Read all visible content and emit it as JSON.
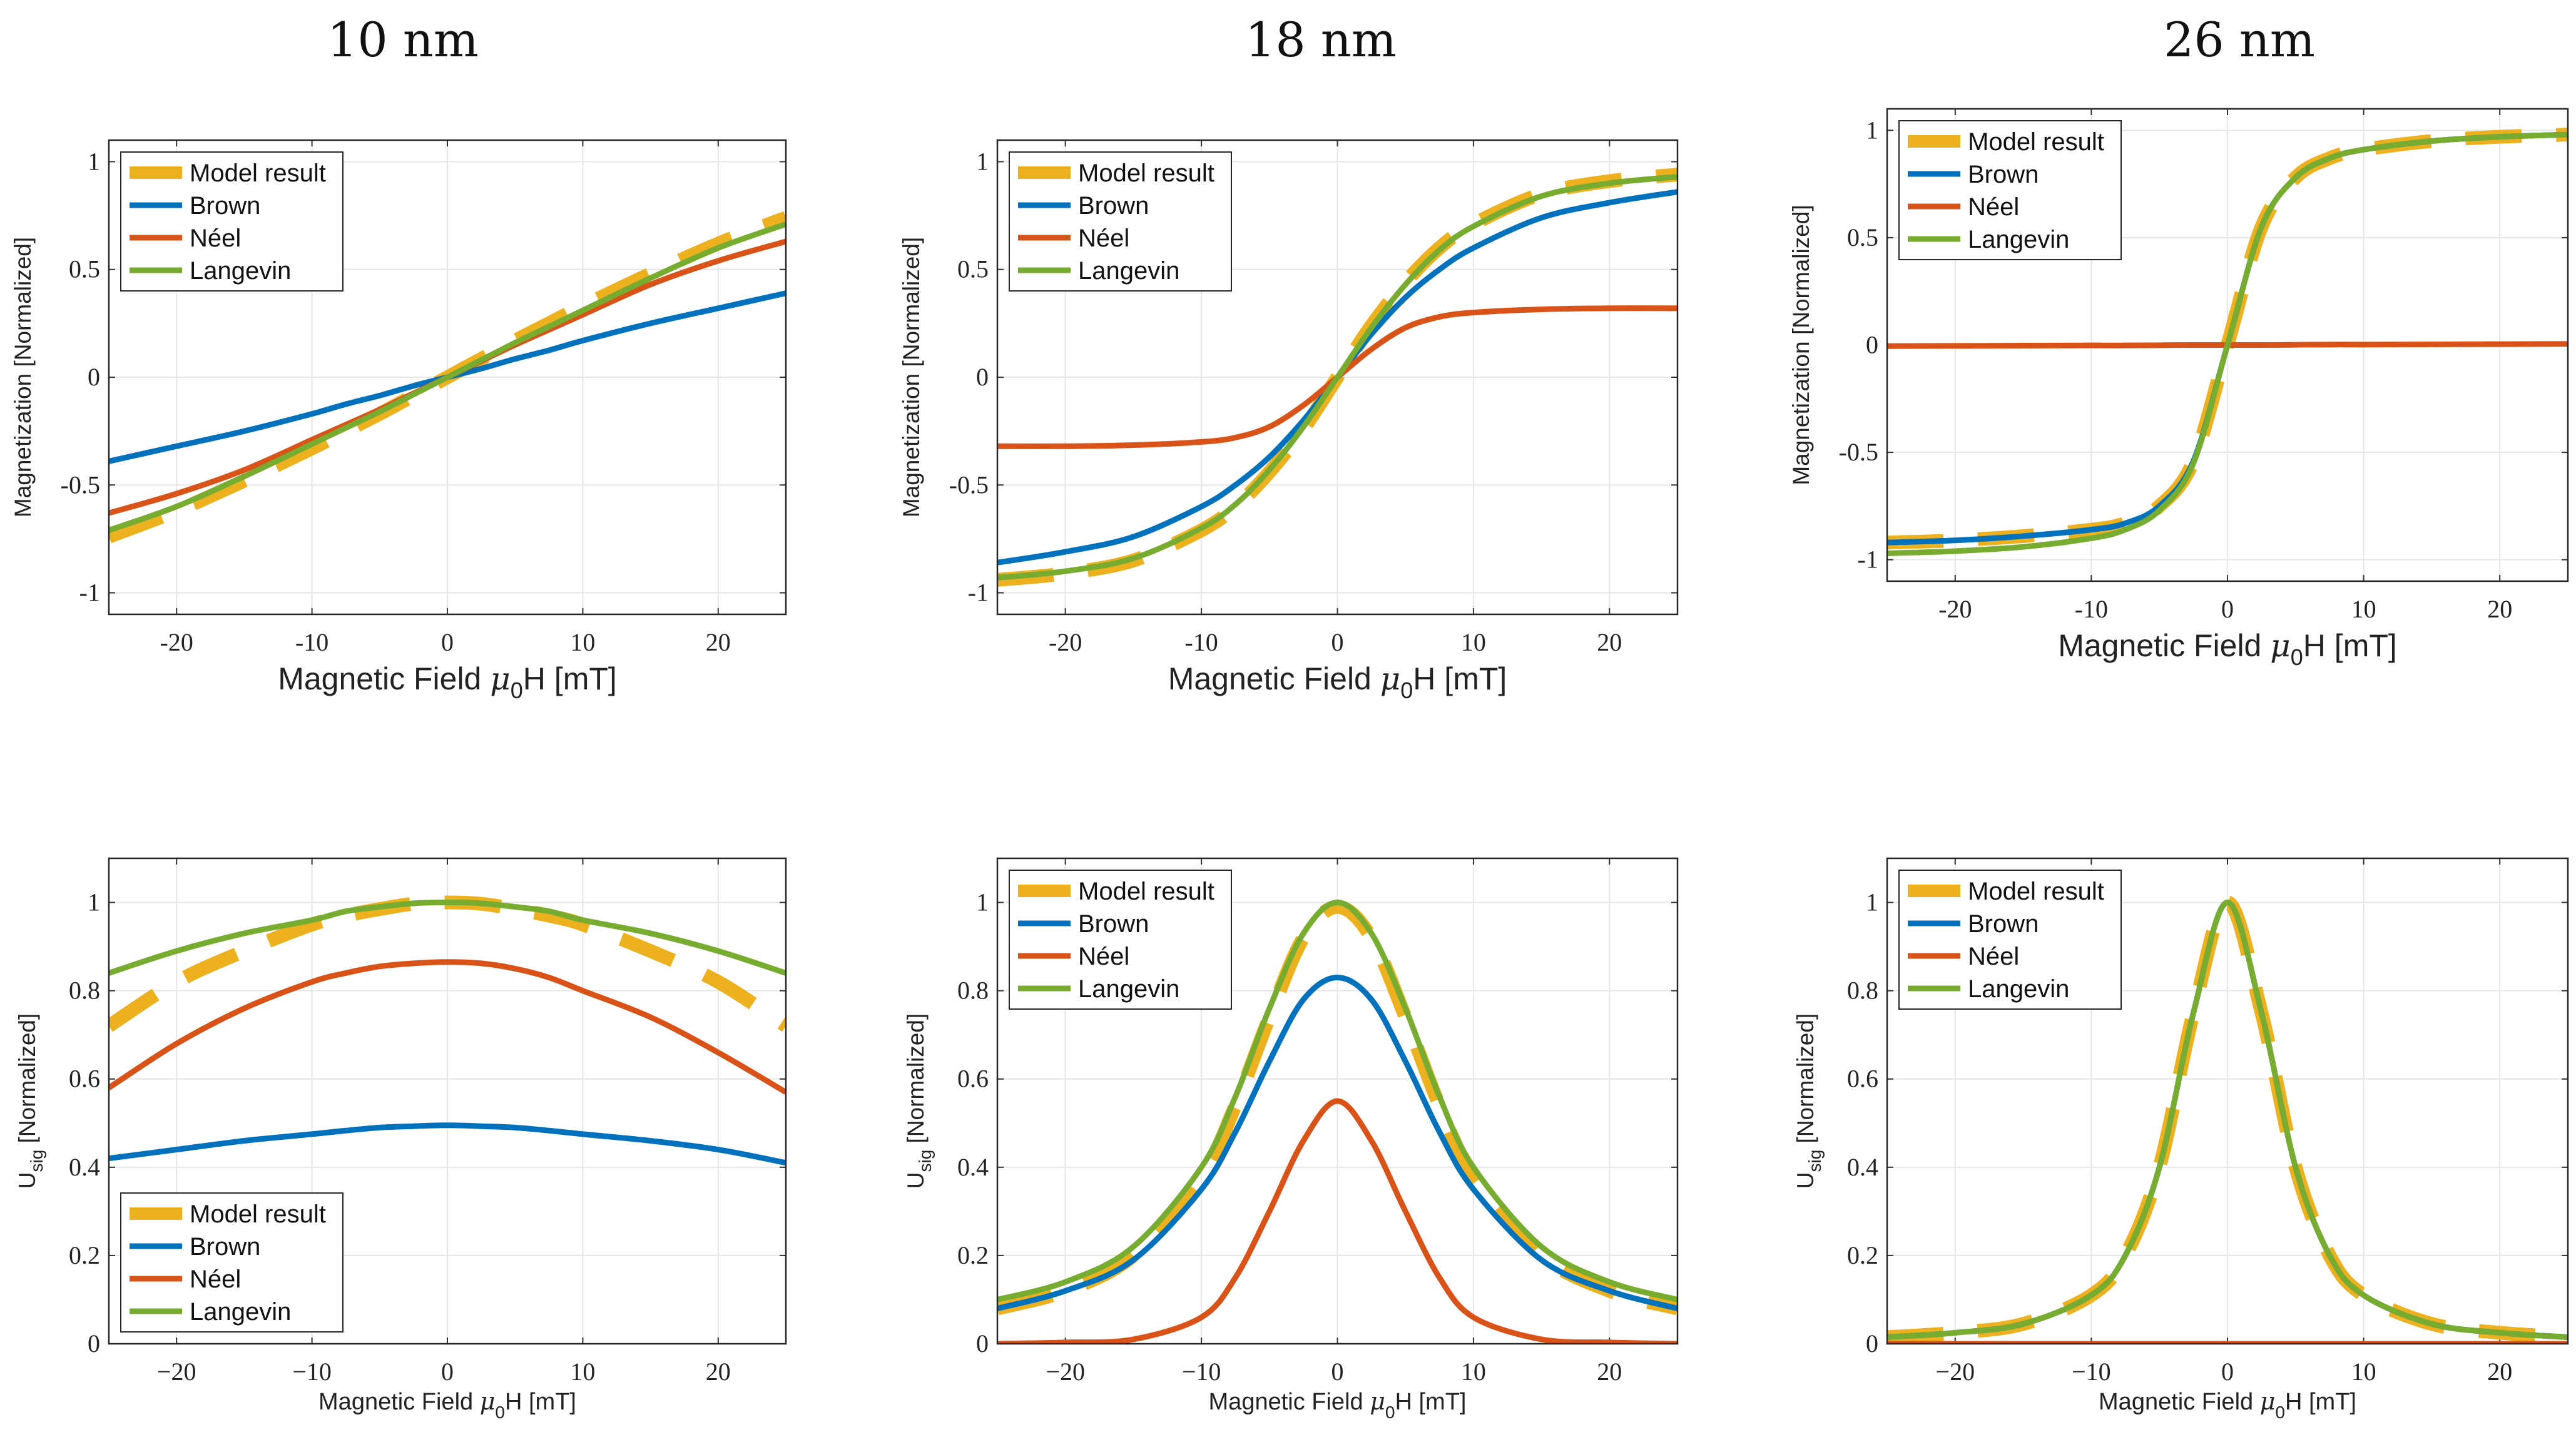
{
  "colors": {
    "model": "#EDB120",
    "brown": "#0072BD",
    "neel": "#D95319",
    "langevin": "#77AC30"
  },
  "chart_data": [
    {
      "type": "line",
      "title": "10 nm",
      "xlabel": "Magnetic Field μ0H [mT]",
      "ylabel": "Magnetization [Normalized]",
      "xlim": [
        -25,
        25
      ],
      "ylim": [
        -1.1,
        1.1
      ],
      "xticks": [
        "-20",
        "-10",
        "0",
        "10",
        "20"
      ],
      "xtick_values": [
        -20,
        -10,
        0,
        10,
        20
      ],
      "yticks": [
        "-1",
        "-0.5",
        "0",
        "0.5",
        "1"
      ],
      "ytick_values": [
        -1,
        -0.5,
        0,
        0.5,
        1
      ],
      "grid": true,
      "legend": "top-left",
      "x": [
        -25,
        -20,
        -15,
        -10,
        -7.5,
        -5,
        -2.5,
        0,
        2.5,
        5,
        7.5,
        10,
        15,
        20,
        25
      ],
      "series": [
        {
          "name": "Model result",
          "values": [
            -0.74,
            -0.62,
            -0.48,
            -0.33,
            -0.25,
            -0.17,
            -0.085,
            0,
            0.085,
            0.17,
            0.25,
            0.33,
            0.48,
            0.62,
            0.74
          ]
        },
        {
          "name": "Brown",
          "values": [
            -0.39,
            -0.32,
            -0.25,
            -0.17,
            -0.125,
            -0.085,
            -0.04,
            0,
            0.04,
            0.085,
            0.125,
            0.17,
            0.25,
            0.32,
            0.39
          ]
        },
        {
          "name": "Néel",
          "values": [
            -0.63,
            -0.54,
            -0.43,
            -0.29,
            -0.22,
            -0.15,
            -0.075,
            0,
            0.075,
            0.15,
            0.22,
            0.29,
            0.43,
            0.54,
            0.63
          ]
        },
        {
          "name": "Langevin",
          "values": [
            -0.71,
            -0.6,
            -0.46,
            -0.31,
            -0.235,
            -0.16,
            -0.08,
            0,
            0.08,
            0.16,
            0.235,
            0.31,
            0.46,
            0.6,
            0.71
          ]
        }
      ]
    },
    {
      "type": "line",
      "title": "18 nm",
      "xlabel": "Magnetic Field μ0H [mT]",
      "ylabel": "Magnetization [Normalized]",
      "xlim": [
        -25,
        25
      ],
      "ylim": [
        -1.1,
        1.1
      ],
      "xticks": [
        "-20",
        "-10",
        "0",
        "10",
        "20"
      ],
      "xtick_values": [
        -20,
        -10,
        0,
        10,
        20
      ],
      "yticks": [
        "-1",
        "-0.5",
        "0",
        "0.5",
        "1"
      ],
      "ytick_values": [
        -1,
        -0.5,
        0,
        0.5,
        1
      ],
      "grid": true,
      "legend": "top-left",
      "x": [
        -25,
        -20,
        -15,
        -10,
        -7.5,
        -5,
        -2.5,
        0,
        2.5,
        5,
        7.5,
        10,
        15,
        20,
        25
      ],
      "series": [
        {
          "name": "Model result",
          "values": [
            -0.94,
            -0.91,
            -0.85,
            -0.71,
            -0.6,
            -0.44,
            -0.24,
            0,
            0.24,
            0.44,
            0.6,
            0.71,
            0.85,
            0.91,
            0.94
          ]
        },
        {
          "name": "Brown",
          "values": [
            -0.86,
            -0.81,
            -0.74,
            -0.6,
            -0.5,
            -0.37,
            -0.2,
            0,
            0.2,
            0.37,
            0.5,
            0.6,
            0.74,
            0.81,
            0.86
          ]
        },
        {
          "name": "Néel",
          "values": [
            -0.32,
            -0.32,
            -0.315,
            -0.3,
            -0.28,
            -0.23,
            -0.13,
            0,
            0.13,
            0.23,
            0.28,
            0.3,
            0.315,
            0.32,
            0.32
          ]
        },
        {
          "name": "Langevin",
          "values": [
            -0.93,
            -0.9,
            -0.84,
            -0.7,
            -0.59,
            -0.43,
            -0.23,
            0,
            0.23,
            0.43,
            0.59,
            0.7,
            0.84,
            0.9,
            0.93
          ]
        }
      ]
    },
    {
      "type": "line",
      "title": "26 nm",
      "xlabel": "Magnetic Field μ0H [mT]",
      "ylabel": "Magnetization [Normalized]",
      "xlim": [
        -25,
        25
      ],
      "ylim": [
        -1.1,
        1.1
      ],
      "xticks": [
        "-20",
        "-10",
        "0",
        "10",
        "20"
      ],
      "xtick_values": [
        -20,
        -10,
        0,
        10,
        20
      ],
      "yticks": [
        "-1",
        "-0.5",
        "0",
        "0.5",
        "1"
      ],
      "ytick_values": [
        -1,
        -0.5,
        0,
        0.5,
        1
      ],
      "grid": true,
      "legend": "top-left",
      "x": [
        -25,
        -20,
        -15,
        -10,
        -7.5,
        -5,
        -2.5,
        0,
        2.5,
        5,
        7.5,
        10,
        15,
        20,
        25
      ],
      "series": [
        {
          "name": "Model result",
          "values": [
            -0.92,
            -0.91,
            -0.89,
            -0.86,
            -0.83,
            -0.75,
            -0.54,
            0,
            0.55,
            0.78,
            0.87,
            0.91,
            0.95,
            0.97,
            0.98
          ]
        },
        {
          "name": "Brown",
          "values": [
            -0.92,
            -0.91,
            -0.89,
            -0.86,
            -0.83,
            -0.75,
            -0.54,
            0,
            0.55,
            0.78,
            0.87,
            0.91,
            0.95,
            0.97,
            0.98
          ]
        },
        {
          "name": "Néel",
          "values": [
            -0.005,
            -0.004,
            -0.003,
            -0.002,
            -0.002,
            -0.001,
            0,
            0,
            0,
            0.001,
            0.002,
            0.002,
            0.003,
            0.004,
            0.005
          ]
        },
        {
          "name": "Langevin",
          "values": [
            -0.97,
            -0.96,
            -0.94,
            -0.9,
            -0.86,
            -0.77,
            -0.55,
            0,
            0.55,
            0.78,
            0.87,
            0.91,
            0.95,
            0.97,
            0.98
          ]
        }
      ]
    },
    {
      "type": "line",
      "title": "",
      "xlabel": "Magnetic Field μ0H [mT]",
      "ylabel": "Usig [Normalized]",
      "xlim": [
        -25,
        25
      ],
      "ylim": [
        0,
        1.1
      ],
      "xticks": [
        "−20",
        "−10",
        "0",
        "10",
        "20"
      ],
      "xtick_values": [
        -20,
        -10,
        0,
        10,
        20
      ],
      "yticks": [
        "0",
        "0.2",
        "0.4",
        "0.6",
        "0.8",
        "1"
      ],
      "ytick_values": [
        0,
        0.2,
        0.4,
        0.6,
        0.8,
        1
      ],
      "grid": true,
      "legend": "bottom-left",
      "x": [
        -25,
        -20,
        -15,
        -10,
        -7.5,
        -5,
        -2.5,
        0,
        2.5,
        5,
        7.5,
        10,
        15,
        20,
        25
      ],
      "series": [
        {
          "name": "Model result",
          "values": [
            0.72,
            0.82,
            0.89,
            0.95,
            0.97,
            0.985,
            0.997,
            1.0,
            0.997,
            0.985,
            0.97,
            0.95,
            0.89,
            0.82,
            0.72
          ]
        },
        {
          "name": "Brown",
          "values": [
            0.42,
            0.44,
            0.46,
            0.475,
            0.483,
            0.49,
            0.493,
            0.495,
            0.493,
            0.49,
            0.483,
            0.475,
            0.46,
            0.44,
            0.41
          ]
        },
        {
          "name": "Néel",
          "values": [
            0.58,
            0.68,
            0.76,
            0.82,
            0.84,
            0.855,
            0.862,
            0.865,
            0.862,
            0.85,
            0.83,
            0.8,
            0.74,
            0.66,
            0.57
          ]
        },
        {
          "name": "Langevin",
          "values": [
            0.84,
            0.89,
            0.93,
            0.96,
            0.98,
            0.99,
            0.998,
            1.0,
            0.998,
            0.99,
            0.98,
            0.96,
            0.93,
            0.89,
            0.84
          ]
        }
      ]
    },
    {
      "type": "line",
      "title": "",
      "xlabel": "Magnetic Field μ0H [mT]",
      "ylabel": "Usig [Normalized]",
      "xlim": [
        -25,
        25
      ],
      "ylim": [
        0,
        1.1
      ],
      "xticks": [
        "−20",
        "−10",
        "0",
        "10",
        "20"
      ],
      "xtick_values": [
        -20,
        -10,
        0,
        10,
        20
      ],
      "yticks": [
        "0",
        "0.2",
        "0.4",
        "0.6",
        "0.8",
        "1"
      ],
      "ytick_values": [
        0,
        0.2,
        0.4,
        0.6,
        0.8,
        1
      ],
      "grid": true,
      "legend": "top-left",
      "x": [
        -25,
        -20,
        -15,
        -10,
        -7.5,
        -5,
        -2.5,
        0,
        2.5,
        5,
        7.5,
        10,
        15,
        20,
        25
      ],
      "series": [
        {
          "name": "Model result",
          "values": [
            0.08,
            0.12,
            0.2,
            0.38,
            0.54,
            0.74,
            0.92,
            0.99,
            0.92,
            0.74,
            0.54,
            0.38,
            0.2,
            0.12,
            0.08
          ]
        },
        {
          "name": "Brown",
          "values": [
            0.08,
            0.12,
            0.19,
            0.35,
            0.48,
            0.64,
            0.78,
            0.83,
            0.78,
            0.64,
            0.48,
            0.35,
            0.19,
            0.12,
            0.08
          ]
        },
        {
          "name": "Néel",
          "values": [
            0,
            0.003,
            0.01,
            0.06,
            0.15,
            0.3,
            0.46,
            0.55,
            0.46,
            0.3,
            0.15,
            0.06,
            0.01,
            0.003,
            0
          ]
        },
        {
          "name": "Langevin",
          "values": [
            0.1,
            0.14,
            0.22,
            0.4,
            0.56,
            0.76,
            0.93,
            1.0,
            0.93,
            0.76,
            0.56,
            0.4,
            0.22,
            0.14,
            0.1
          ]
        }
      ]
    },
    {
      "type": "line",
      "title": "",
      "xlabel": "Magnetic Field μ0H [mT]",
      "ylabel": "Usig [Normalized]",
      "xlim": [
        -25,
        25
      ],
      "ylim": [
        0,
        1.1
      ],
      "xticks": [
        "−20",
        "−10",
        "0",
        "10",
        "20"
      ],
      "xtick_values": [
        -20,
        -10,
        0,
        10,
        20
      ],
      "yticks": [
        "0",
        "0.2",
        "0.4",
        "0.6",
        "0.8",
        "1"
      ],
      "ytick_values": [
        0,
        0.2,
        0.4,
        0.6,
        0.8,
        1
      ],
      "grid": true,
      "legend": "top-left",
      "x": [
        -25,
        -20,
        -15,
        -10,
        -7.5,
        -5,
        -2.5,
        0,
        2.5,
        5,
        7.5,
        10,
        15,
        20,
        25
      ],
      "series": [
        {
          "name": "Model result",
          "values": [
            0.015,
            0.025,
            0.045,
            0.11,
            0.2,
            0.4,
            0.75,
            1.0,
            0.75,
            0.4,
            0.2,
            0.11,
            0.045,
            0.025,
            0.015
          ]
        },
        {
          "name": "Brown",
          "values": [
            0.015,
            0.025,
            0.045,
            0.11,
            0.2,
            0.4,
            0.75,
            1.0,
            0.75,
            0.4,
            0.2,
            0.11,
            0.045,
            0.025,
            0.015
          ]
        },
        {
          "name": "Néel",
          "values": [
            0,
            0,
            0,
            0,
            0,
            0,
            0,
            0,
            0,
            0,
            0,
            0,
            0,
            0,
            0
          ]
        },
        {
          "name": "Langevin",
          "values": [
            0.015,
            0.025,
            0.045,
            0.11,
            0.2,
            0.4,
            0.75,
            1.0,
            0.75,
            0.4,
            0.2,
            0.11,
            0.045,
            0.025,
            0.015
          ]
        }
      ]
    }
  ]
}
